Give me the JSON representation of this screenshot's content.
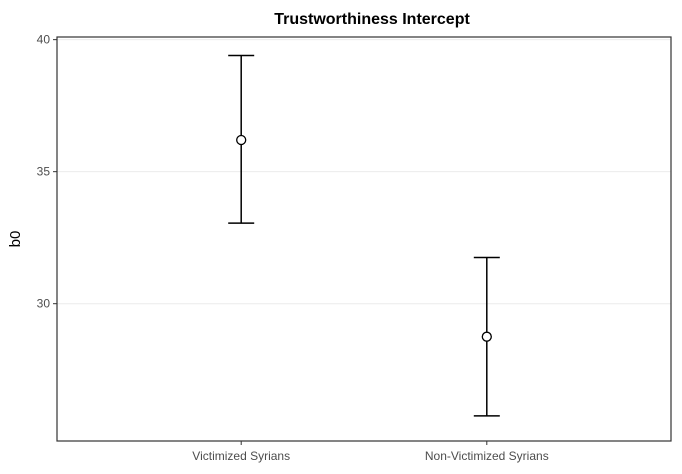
{
  "chart_data": {
    "type": "errorbar",
    "title": "Trustworthiness Intercept",
    "xlabel": "",
    "ylabel": "b0",
    "categories": [
      "Victimized Syrians",
      "Non-Victimized Syrians"
    ],
    "points": [
      {
        "category": "Victimized Syrians",
        "estimate": 36.2,
        "lower": 33.05,
        "upper": 39.4
      },
      {
        "category": "Non-Victimized Syrians",
        "estimate": 28.75,
        "lower": 25.75,
        "upper": 31.75
      }
    ],
    "yticks": [
      30,
      35,
      40
    ],
    "ylim": [
      24.8,
      40.1
    ],
    "grid": true,
    "legend": "none"
  }
}
